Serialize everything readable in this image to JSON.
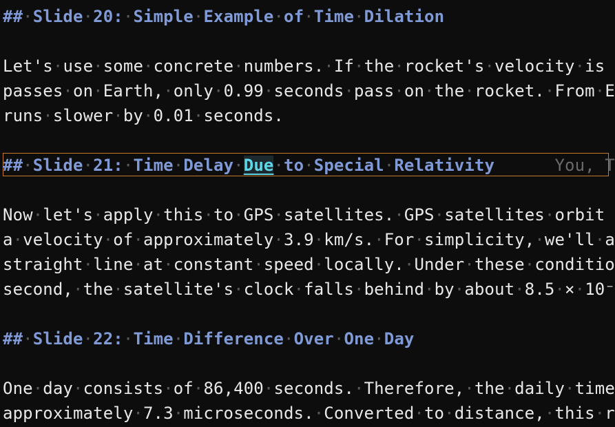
{
  "editor": {
    "lines": [
      {
        "type": "heading",
        "text": "## Slide 20: Simple Example of Time Dilation"
      },
      {
        "type": "empty",
        "text": ""
      },
      {
        "type": "text",
        "text": "Let's use some concrete numbers. If the rocket's velocity is"
      },
      {
        "type": "text",
        "text": "passes on Earth, only 0.99 seconds pass on the rocket. From E"
      },
      {
        "type": "text",
        "text": "runs slower by 0.01 seconds."
      },
      {
        "type": "empty",
        "text": ""
      },
      {
        "type": "heading-current",
        "before": "## Slide 21: Time Delay ",
        "highlight": "Due",
        "after": " to Special Relativity",
        "blame": "You, T"
      },
      {
        "type": "empty",
        "text": ""
      },
      {
        "type": "text",
        "text": "Now let's apply this to GPS satellites. GPS satellites orbit"
      },
      {
        "type": "text",
        "text": "a velocity of approximately 3.9 km/s. For simplicity, we'll a"
      },
      {
        "type": "text",
        "text": "straight line at constant speed locally. Under these conditio"
      },
      {
        "type": "text",
        "text": "second, the satellite's clock falls behind by about 8.5 × 10⁻"
      },
      {
        "type": "empty",
        "text": ""
      },
      {
        "type": "heading",
        "text": "## Slide 22: Time Difference Over One Day"
      },
      {
        "type": "empty",
        "text": ""
      },
      {
        "type": "text",
        "text": "One day consists of 86,400 seconds. Therefore, the daily time"
      },
      {
        "type": "text",
        "text": "approximately 7.3 microseconds. Converted to distance, this r"
      }
    ]
  },
  "colors": {
    "background": "#0d0d0d",
    "text": "#e8e8e8",
    "heading": "#7f9ad6",
    "whitespace_marker": "#5a5a5a",
    "cursor_line_border": "#c57a2c",
    "word_highlight": "#5fd7e8",
    "blame": "#6a6a6a"
  }
}
